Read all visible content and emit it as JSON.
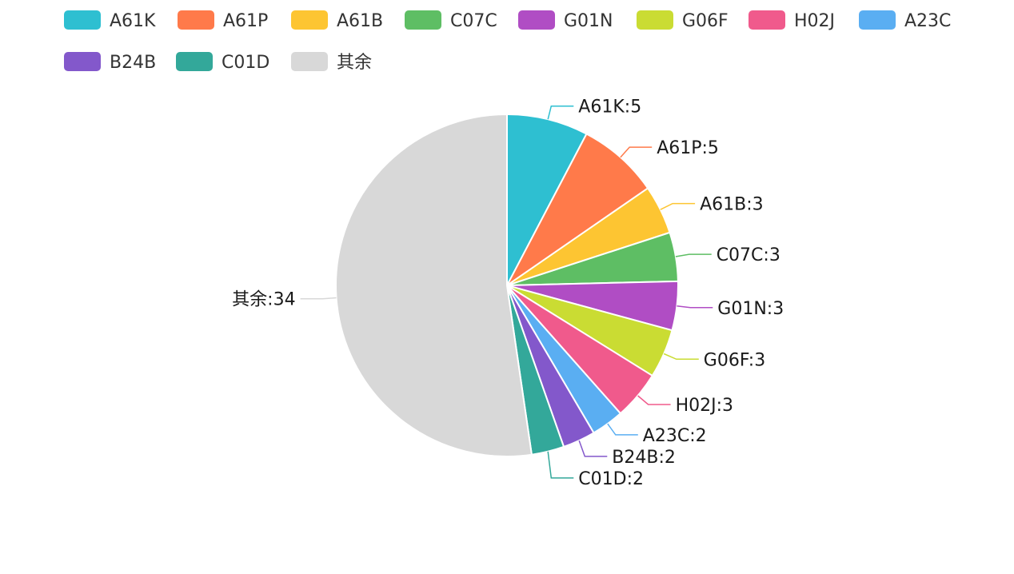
{
  "chart_data": {
    "type": "pie",
    "title": "",
    "legend_position": "top",
    "start_angle_deg": 90,
    "direction": "clockwise",
    "categories": [
      "A61K",
      "A61P",
      "A61B",
      "C07C",
      "G01N",
      "G06F",
      "H02J",
      "A23C",
      "B24B",
      "C01D",
      "其余"
    ],
    "values": [
      5,
      5,
      3,
      3,
      3,
      3,
      3,
      2,
      2,
      2,
      34
    ],
    "colors": [
      "#2ebfd1",
      "#ff7a4a",
      "#fdc532",
      "#5ebe64",
      "#b04dc4",
      "#cadc33",
      "#f05a8c",
      "#5aaef2",
      "#8358cb",
      "#33a89a",
      "#d8d8d8"
    ],
    "label_separator": ":"
  }
}
